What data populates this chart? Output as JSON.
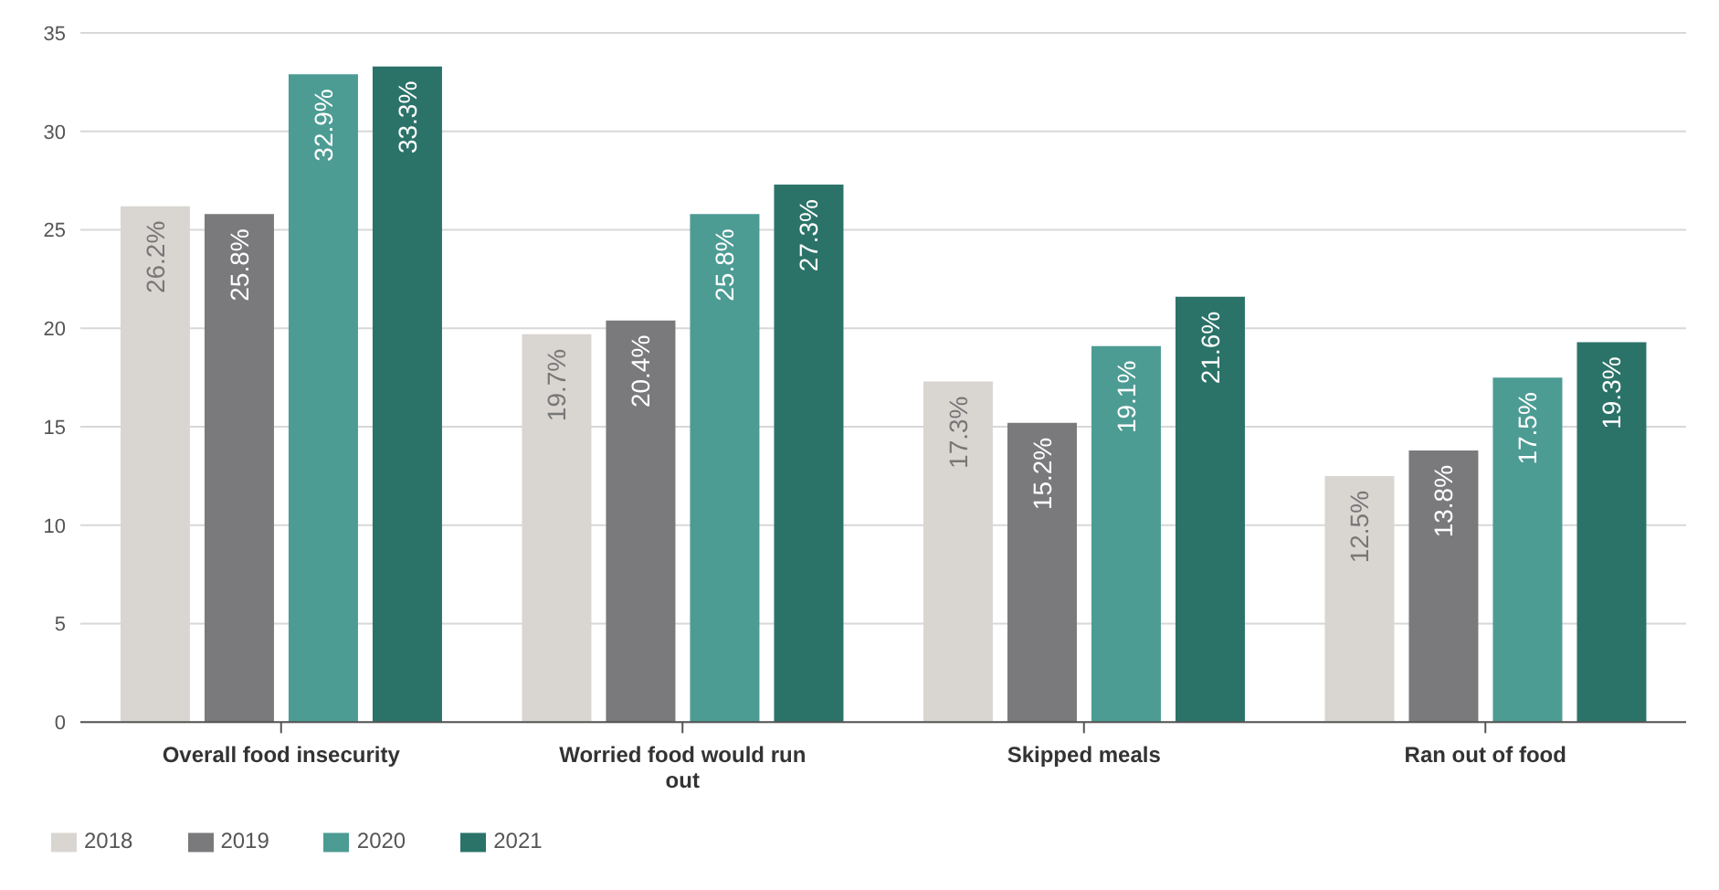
{
  "chart_data": {
    "type": "bar",
    "categories": [
      "Overall food insecurity",
      "Worried food would run out",
      "Skipped meals",
      "Ran out of food"
    ],
    "series": [
      {
        "name": "2018",
        "color": "#d9d6d2",
        "values": [
          26.2,
          19.7,
          17.3,
          12.5
        ],
        "value_labels": [
          "26.2%",
          "19.7%",
          "17.3%",
          "12.5%"
        ]
      },
      {
        "name": "2019",
        "color": "#7a7a7c",
        "values": [
          25.8,
          20.4,
          15.2,
          13.8
        ],
        "value_labels": [
          "25.8%",
          "20.4%",
          "15.2%",
          "13.8%"
        ]
      },
      {
        "name": "2020",
        "color": "#4c9c94",
        "values": [
          32.9,
          25.8,
          19.1,
          17.5
        ],
        "value_labels": [
          "32.9%",
          "25.8%",
          "19.1%",
          "17.5%"
        ]
      },
      {
        "name": "2021",
        "color": "#2b7369",
        "values": [
          33.3,
          27.3,
          21.6,
          19.3
        ],
        "value_labels": [
          "33.3%",
          "27.3%",
          "21.6%",
          "19.3%"
        ]
      }
    ],
    "ylim": [
      0,
      35
    ],
    "yticks": [
      0,
      5,
      10,
      15,
      20,
      25,
      30,
      35
    ],
    "grid": "y",
    "legend": "bottom left"
  }
}
